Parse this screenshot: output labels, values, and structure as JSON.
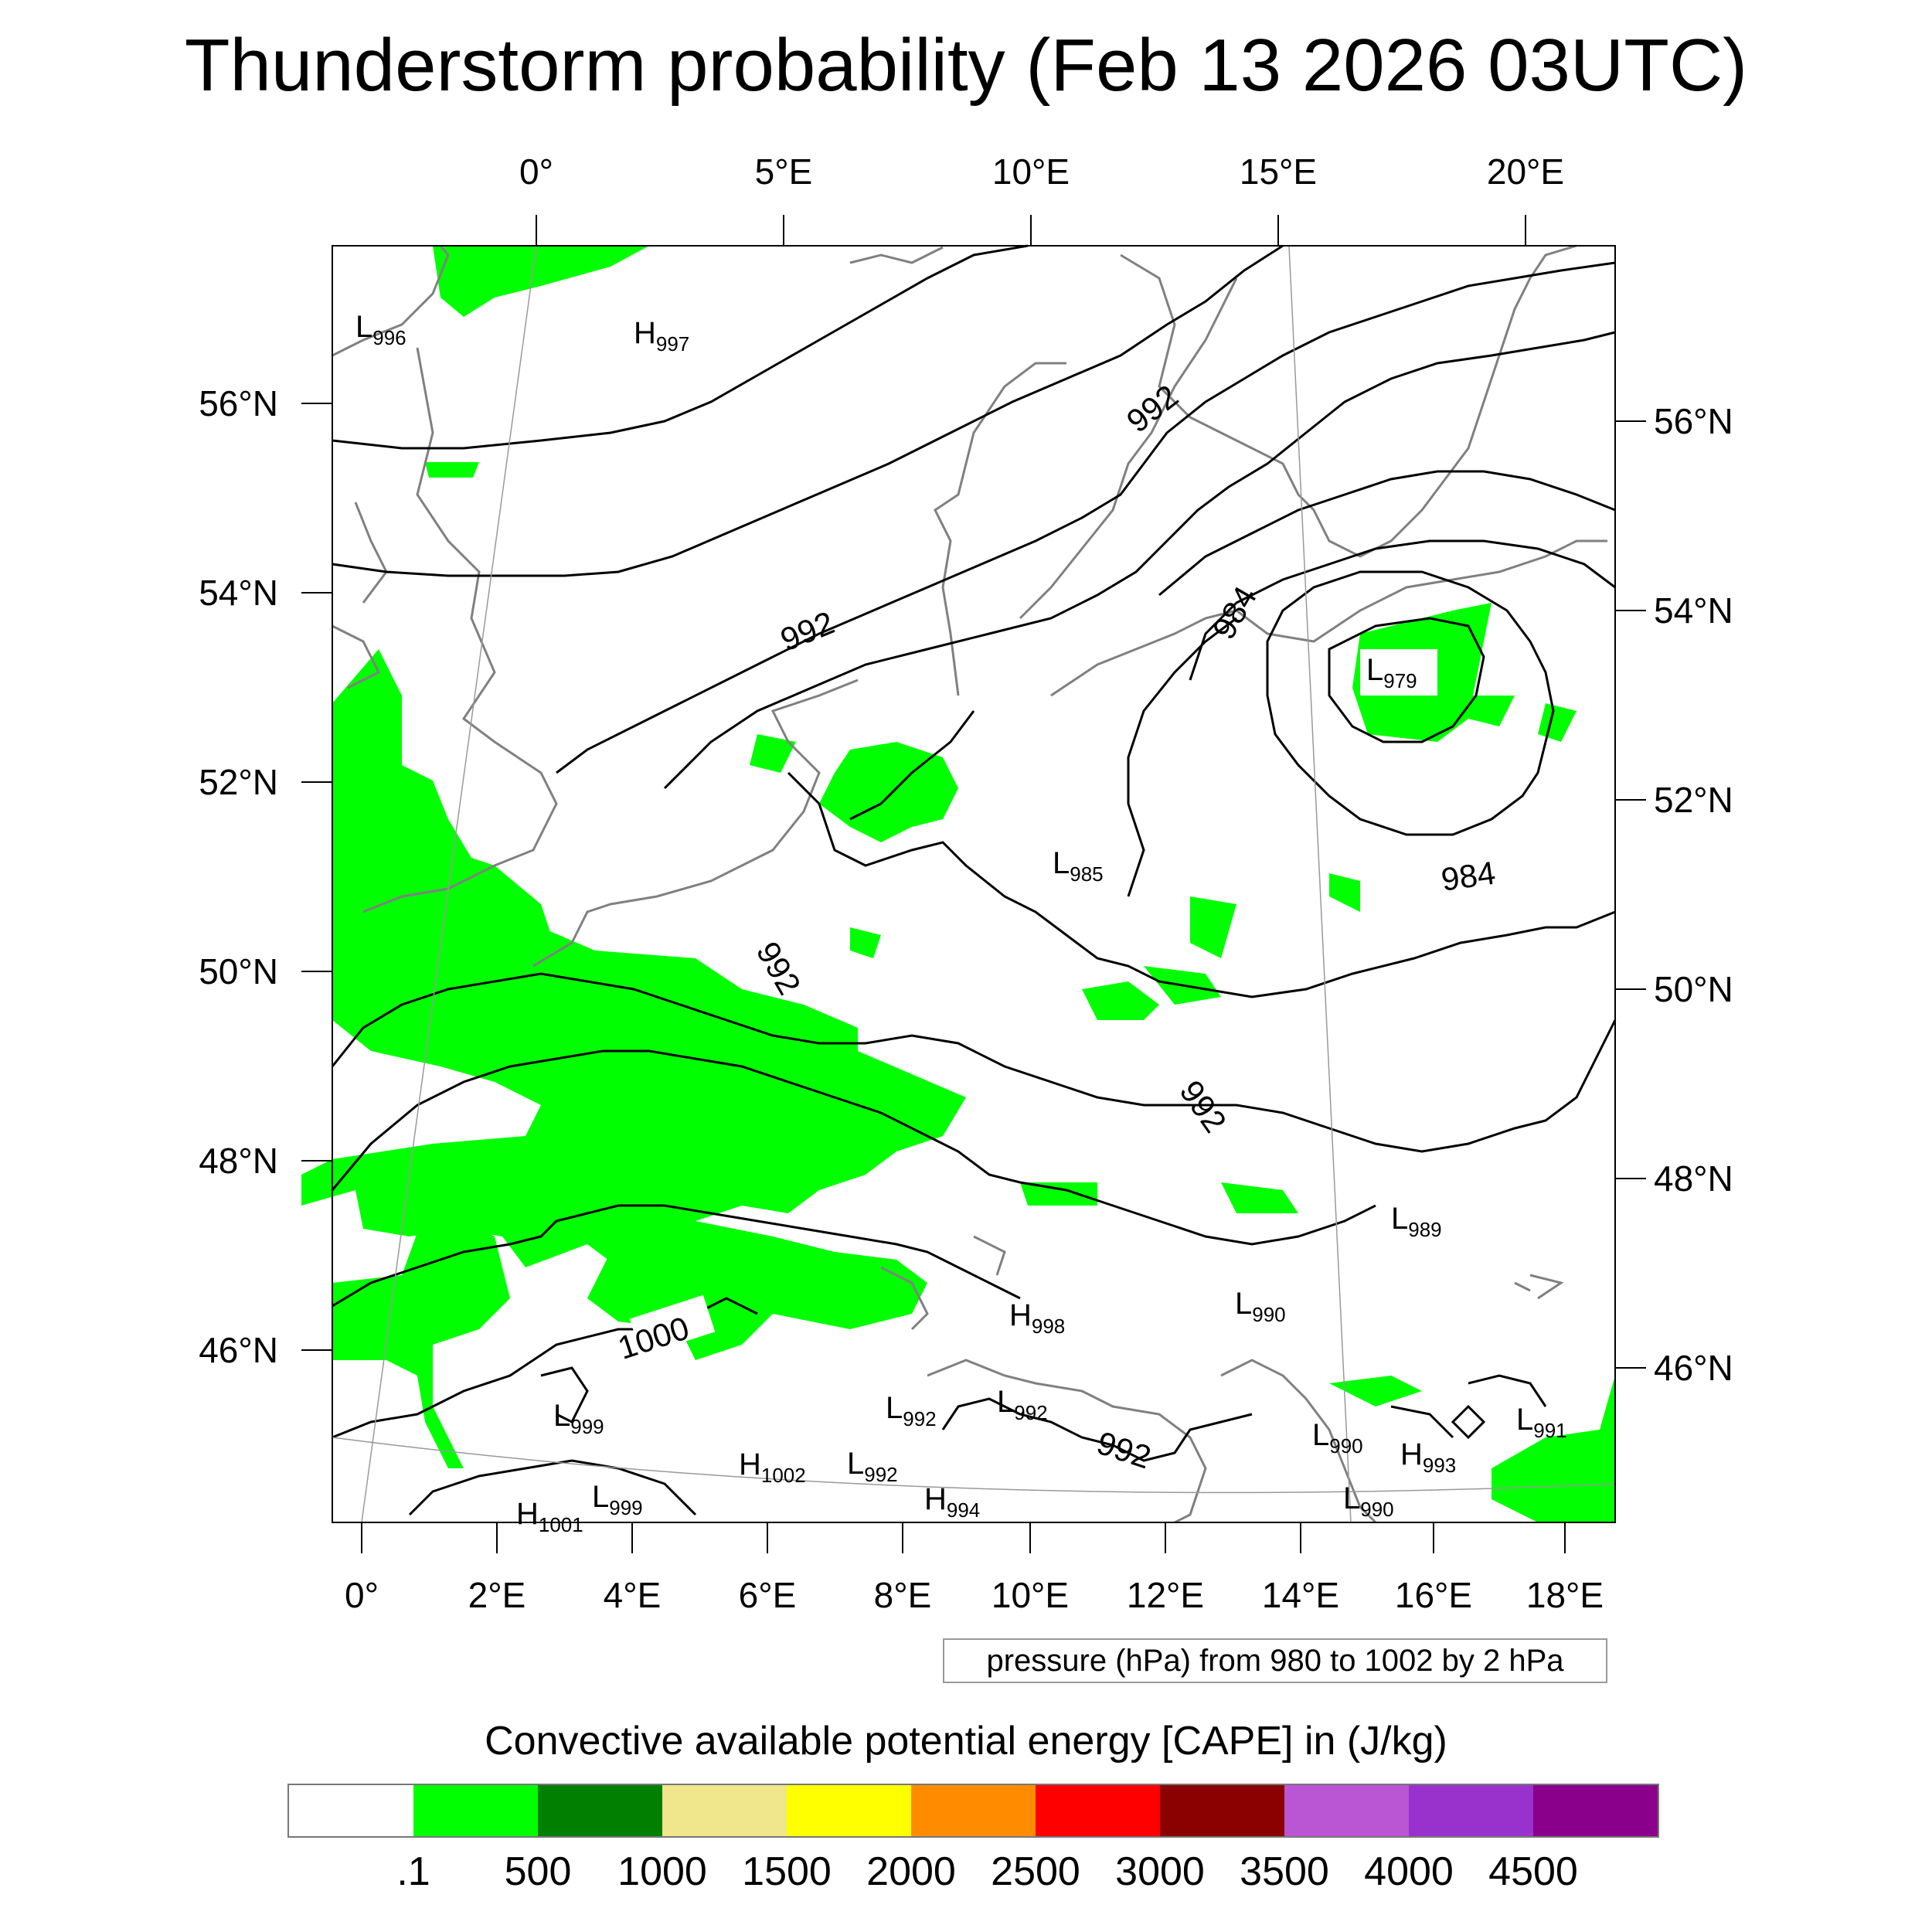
{
  "title": "Thunderstorm probability (Feb 13 2026 03UTC)",
  "top_longitude_labels": [
    "0°",
    "5°E",
    "10°E",
    "15°E",
    "20°E"
  ],
  "left_latitude_labels": [
    "56°N",
    "54°N",
    "52°N",
    "50°N",
    "48°N",
    "46°N"
  ],
  "right_latitude_labels": [
    "56°N",
    "54°N",
    "52°N",
    "50°N",
    "48°N",
    "46°N"
  ],
  "bottom_longitude_labels": [
    "0°",
    "2°E",
    "4°E",
    "6°E",
    "8°E",
    "10°E",
    "12°E",
    "14°E",
    "16°E",
    "18°E"
  ],
  "contour_labels": [
    "992",
    "992",
    "992",
    "992",
    "992",
    "984",
    "984",
    "1000"
  ],
  "pressure_centers": [
    {
      "type": "L",
      "value": "996"
    },
    {
      "type": "H",
      "value": "997"
    },
    {
      "type": "L",
      "value": "979"
    },
    {
      "type": "L",
      "value": "985"
    },
    {
      "type": "L",
      "value": "989"
    },
    {
      "type": "L",
      "value": "990"
    },
    {
      "type": "H",
      "value": "998"
    },
    {
      "type": "L",
      "value": "999"
    },
    {
      "type": "L",
      "value": "992"
    },
    {
      "type": "L",
      "value": "992"
    },
    {
      "type": "L",
      "value": "990"
    },
    {
      "type": "H",
      "value": "993"
    },
    {
      "type": "L",
      "value": "991"
    },
    {
      "type": "H",
      "value": "1002"
    },
    {
      "type": "L",
      "value": "992"
    },
    {
      "type": "L",
      "value": "999"
    },
    {
      "type": "H",
      "value": "994"
    },
    {
      "type": "H",
      "value": "1001"
    },
    {
      "type": "L",
      "value": "990"
    }
  ],
  "info_box": "pressure (hPa) from 980 to 1002 by 2 hPa",
  "colorbar": {
    "title": "Convective available potential energy [CAPE] in (J/kg)",
    "colors": [
      "#ffffff",
      "#00ff00",
      "#007f00",
      "#f0e68c",
      "#ffff00",
      "#ff8c00",
      "#ff0000",
      "#8b0000",
      "#ba55d3",
      "#9932cc",
      "#8b008b"
    ],
    "ticks": [
      ".1",
      "500",
      "1000",
      "1500",
      "2000",
      "2500",
      "3000",
      "3500",
      "4000",
      "4500"
    ]
  },
  "colors": {
    "cape_fill": "#00ff00",
    "coastline": "#808080",
    "isobar": "#000000"
  }
}
